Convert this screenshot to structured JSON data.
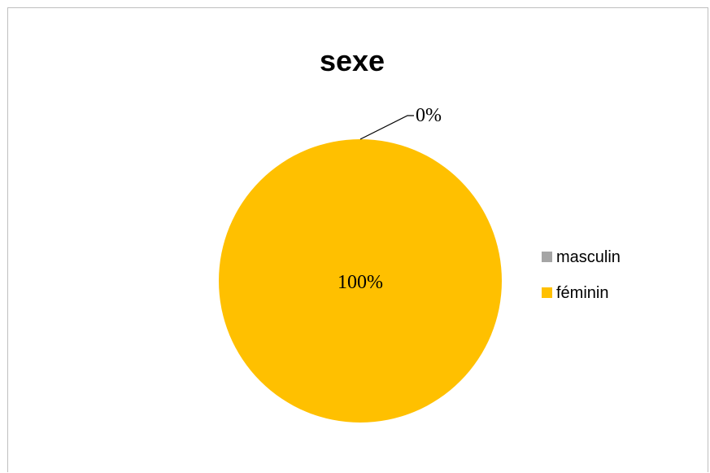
{
  "chart_data": {
    "type": "pie",
    "title": "sexe",
    "categories": [
      "masculin",
      "féminin"
    ],
    "values": [
      0,
      100
    ],
    "data_labels": [
      "0%",
      "100%"
    ],
    "colors": [
      "#a5a5a5",
      "#ffc000"
    ],
    "legend_position": "right"
  }
}
